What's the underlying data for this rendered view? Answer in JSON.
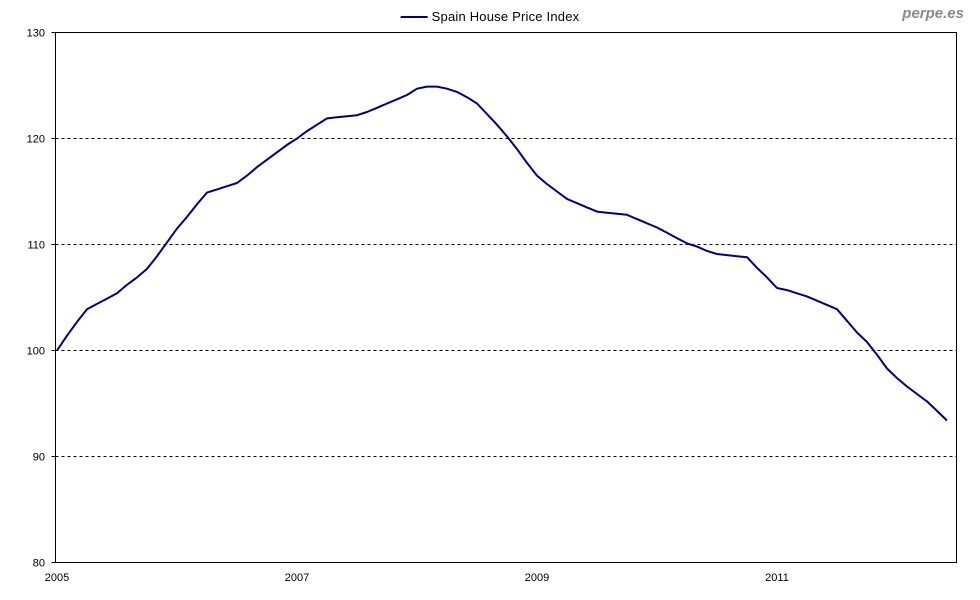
{
  "watermark": {
    "text": "perpe.es"
  },
  "chart_data": {
    "type": "line",
    "title": "",
    "legend": "Spain House Price Index",
    "legend_position": "top-center",
    "xlabel": "",
    "ylabel": "",
    "ylim": [
      80,
      130
    ],
    "y_ticks": [
      130,
      120,
      110,
      100,
      90,
      80
    ],
    "gridline_values": [
      120,
      110,
      100,
      90
    ],
    "grid_style": "dashed",
    "x_tick_years": [
      "2005",
      "2007",
      "2009",
      "2011"
    ],
    "x": [
      "2005-01",
      "2005-02",
      "2005-03",
      "2005-04",
      "2005-05",
      "2005-06",
      "2005-07",
      "2005-08",
      "2005-09",
      "2005-10",
      "2005-11",
      "2005-12",
      "2006-01",
      "2006-02",
      "2006-03",
      "2006-04",
      "2006-05",
      "2006-06",
      "2006-07",
      "2006-08",
      "2006-09",
      "2006-10",
      "2006-11",
      "2006-12",
      "2007-01",
      "2007-02",
      "2007-03",
      "2007-04",
      "2007-05",
      "2007-06",
      "2007-07",
      "2007-08",
      "2007-09",
      "2007-10",
      "2007-11",
      "2007-12",
      "2008-01",
      "2008-02",
      "2008-03",
      "2008-04",
      "2008-05",
      "2008-06",
      "2008-07",
      "2008-08",
      "2008-09",
      "2008-10",
      "2008-11",
      "2008-12",
      "2009-01",
      "2009-02",
      "2009-03",
      "2009-04",
      "2009-05",
      "2009-06",
      "2009-07",
      "2009-08",
      "2009-09",
      "2009-10",
      "2009-11",
      "2009-12",
      "2010-01",
      "2010-02",
      "2010-03",
      "2010-04",
      "2010-05",
      "2010-06",
      "2010-07",
      "2010-08",
      "2010-09",
      "2010-10",
      "2010-11",
      "2010-12",
      "2011-01",
      "2011-02",
      "2011-03",
      "2011-04",
      "2011-05",
      "2011-06",
      "2011-07",
      "2011-08",
      "2011-09",
      "2011-10",
      "2011-11",
      "2011-12",
      "2012-01",
      "2012-02",
      "2012-03",
      "2012-04",
      "2012-05",
      "2012-06"
    ],
    "series": [
      {
        "name": "Spain House Price Index",
        "values": [
          100.0,
          101.4,
          102.7,
          103.9,
          104.4,
          104.9,
          105.4,
          106.2,
          106.9,
          107.7,
          108.9,
          110.2,
          111.5,
          112.6,
          113.8,
          114.9,
          115.2,
          115.5,
          115.8,
          116.5,
          117.3,
          118.0,
          118.7,
          119.4,
          120.0,
          120.7,
          121.3,
          121.9,
          122.0,
          122.1,
          122.2,
          122.5,
          122.9,
          123.3,
          123.7,
          124.1,
          124.7,
          124.9,
          124.9,
          124.7,
          124.4,
          123.9,
          123.3,
          122.3,
          121.3,
          120.2,
          119.0,
          117.7,
          116.5,
          115.7,
          115.0,
          114.3,
          113.9,
          113.5,
          113.1,
          113.0,
          112.9,
          112.8,
          112.4,
          112.0,
          111.6,
          111.1,
          110.6,
          110.1,
          109.8,
          109.4,
          109.1,
          109.0,
          108.9,
          108.8,
          107.8,
          106.9,
          105.9,
          105.7,
          105.4,
          105.1,
          104.7,
          104.3,
          103.9,
          102.8,
          101.7,
          100.8,
          99.6,
          98.3,
          97.4,
          96.6,
          95.9,
          95.2,
          94.3,
          93.4
        ]
      }
    ],
    "colors": {
      "line": "#000080",
      "grid": "#000000",
      "border": "#000000",
      "tick_text": "#000000",
      "watermark": "#8a8a8a",
      "background": "#ffffff"
    }
  }
}
